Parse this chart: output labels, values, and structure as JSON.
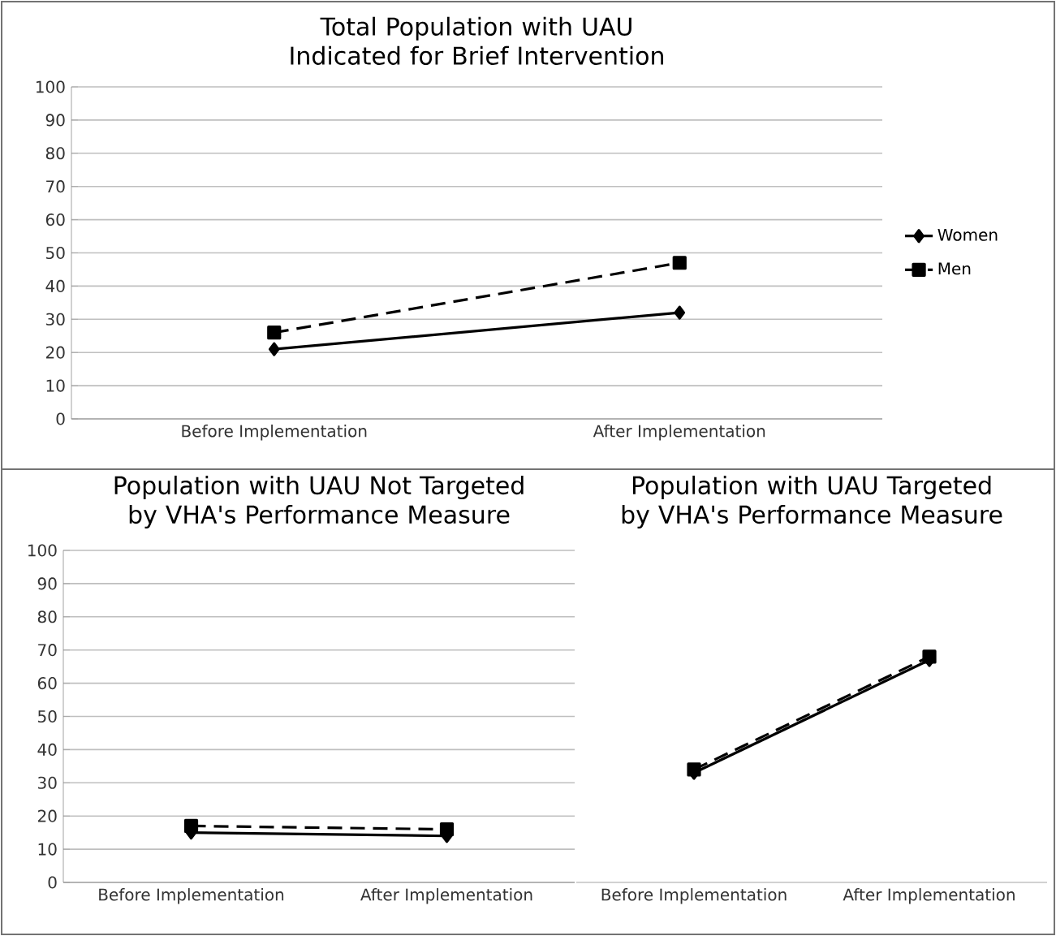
{
  "chart_data": [
    {
      "type": "line",
      "title": "Total Population with UAU Indicated for Brief Intervention",
      "categories": [
        "Before Implementation",
        "After Implementation"
      ],
      "series": [
        {
          "name": "Women",
          "color": "#000000",
          "marker": "diamond",
          "line_style": "solid",
          "values": [
            21,
            32
          ]
        },
        {
          "name": "Men",
          "color": "#000000",
          "marker": "square",
          "line_style": "dashed",
          "values": [
            26,
            47
          ]
        }
      ],
      "ylim": [
        0,
        100
      ],
      "yticks": [
        0,
        10,
        20,
        30,
        40,
        50,
        60,
        70,
        80,
        90,
        100
      ],
      "grid": "y",
      "legend": "right"
    },
    {
      "type": "line",
      "title": "Population with UAU Not Targeted by VHA's Performance Measure",
      "categories": [
        "Before Implementation",
        "After Implementation"
      ],
      "series": [
        {
          "color": "#000000",
          "marker": "diamond",
          "line_style": "solid",
          "values": [
            15,
            14
          ]
        },
        {
          "color": "#000000",
          "marker": "square",
          "line_style": "dashed",
          "values": [
            17,
            16
          ]
        }
      ],
      "ylim": [
        0,
        100
      ],
      "yticks": [
        0,
        10,
        20,
        30,
        40,
        50,
        60,
        70,
        80,
        90,
        100
      ],
      "grid": "y"
    },
    {
      "type": "line",
      "title": "Population with UAU Targeted by VHA's Performance Measure",
      "categories": [
        "Before Implementation",
        "After Implementation"
      ],
      "series": [
        {
          "color": "#000000",
          "marker": "diamond",
          "line_style": "solid",
          "values": [
            33,
            67
          ]
        },
        {
          "color": "#000000",
          "marker": "square",
          "line_style": "dashed",
          "values": [
            34,
            68
          ]
        }
      ],
      "ylim": [
        0,
        100
      ],
      "yticks": [
        0,
        10,
        20,
        30,
        40,
        50,
        60,
        70,
        80,
        90,
        100
      ],
      "grid": "y",
      "tick_labels": "x"
    }
  ]
}
